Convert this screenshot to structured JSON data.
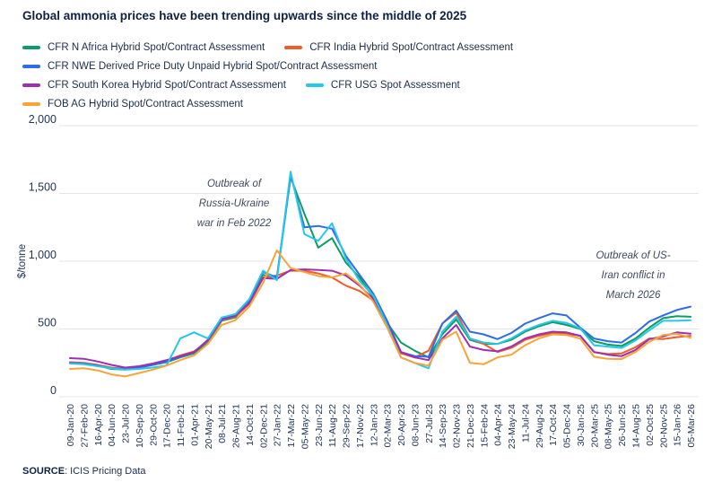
{
  "title": "Global ammonia prices have been trending upwards since the middle of 2025",
  "source": {
    "label": "SOURCE",
    "text": ": ICIS Pricing Data"
  },
  "annotations": [
    {
      "lines": [
        "Outbreak of",
        "Russia-Ukraine",
        "war in Feb 2022"
      ]
    },
    {
      "lines": [
        "Outbreak of US-",
        "Iran conflict in",
        "March 2026"
      ]
    }
  ],
  "chart_data": {
    "type": "line",
    "title": "Global ammonia prices have been trending upwards since the middle of 2025",
    "xlabel": "",
    "ylabel": "$/tonne",
    "ylim": [
      0,
      2000
    ],
    "yticks": [
      0,
      500,
      1000,
      1500,
      2000
    ],
    "ytick_labels": [
      "0",
      "500",
      "1,000",
      "1,500",
      "2,000"
    ],
    "grid": true,
    "legend_position": "top",
    "legend_rows": [
      [
        0,
        1
      ],
      [
        2
      ],
      [
        3,
        4
      ],
      [
        5
      ]
    ],
    "categories": [
      "09-Jan-20",
      "27-Feb-20",
      "16-Apr-20",
      "04-Jun-20",
      "23-Jul-20",
      "10-Sep-20",
      "29-Oct-20",
      "17-Dec-20",
      "11-Feb-21",
      "01-Apr-21",
      "20-May-21",
      "08-Jul-21",
      "26-Aug-21",
      "14-Oct-21",
      "02-Dec-21",
      "27-Jan-22",
      "17-Mar-22",
      "05-May-22",
      "23-Jun-22",
      "11-Aug-22",
      "29-Sep-22",
      "17-Nov-22",
      "12-Jan-23",
      "02-Mar-23",
      "20-Apr-23",
      "08-Jun-23",
      "27-Jul-23",
      "14-Sep-23",
      "02-Nov-23",
      "21-Dec-23",
      "15-Feb-24",
      "04-Apr-24",
      "23-May-24",
      "11-Jul-24",
      "29-Aug-24",
      "17-Oct-24",
      "05-Dec-24",
      "30-Jan-25",
      "20-Mar-25",
      "08-May-25",
      "26-Jun-25",
      "14-Aug-25",
      "02-Oct-25",
      "20-Nov-25",
      "15-Jan-26",
      "05-Mar-26"
    ],
    "series": [
      {
        "name": "CFR N Africa Hybrid Spot/Contract Assessment",
        "color": "#0b9d63",
        "values": [
          250,
          245,
          230,
          205,
          200,
          215,
          235,
          255,
          290,
          320,
          405,
          560,
          585,
          700,
          900,
          870,
          1620,
          1350,
          1100,
          1170,
          990,
          880,
          730,
          545,
          400,
          340,
          290,
          460,
          570,
          420,
          390,
          390,
          420,
          480,
          520,
          550,
          530,
          500,
          410,
          385,
          375,
          430,
          510,
          580,
          595,
          590
        ]
      },
      {
        "name": "CFR India Hybrid Spot/Contract Assessment",
        "color": "#f25c2a",
        "values": [
          255,
          250,
          235,
          215,
          205,
          220,
          240,
          265,
          305,
          335,
          410,
          565,
          590,
          685,
          880,
          895,
          930,
          930,
          910,
          880,
          820,
          780,
          710,
          530,
          320,
          290,
          340,
          540,
          620,
          430,
          390,
          330,
          360,
          420,
          450,
          470,
          465,
          450,
          330,
          315,
          320,
          365,
          430,
          425,
          440,
          450
        ]
      },
      {
        "name": "CFR NWE Derived Price Duty Unpaid Hybrid Spot/Contract Assessment",
        "color": "#2f6ce5",
        "values": [
          250,
          245,
          230,
          210,
          205,
          215,
          235,
          260,
          295,
          330,
          415,
          570,
          595,
          715,
          920,
          880,
          1640,
          1250,
          1260,
          1240,
          1040,
          900,
          760,
          560,
          330,
          300,
          295,
          540,
          635,
          480,
          460,
          425,
          470,
          540,
          580,
          615,
          600,
          510,
          430,
          410,
          400,
          470,
          555,
          600,
          640,
          665
        ]
      },
      {
        "name": "CFR South Korea Hybrid Spot/Contract Assessment",
        "color": "#9e2fb0",
        "values": [
          285,
          280,
          260,
          235,
          215,
          225,
          245,
          270,
          300,
          330,
          420,
          575,
          600,
          690,
          875,
          870,
          935,
          940,
          935,
          930,
          895,
          820,
          720,
          540,
          330,
          290,
          270,
          430,
          530,
          370,
          345,
          335,
          370,
          430,
          460,
          480,
          475,
          450,
          330,
          310,
          300,
          345,
          425,
          445,
          475,
          465
        ]
      },
      {
        "name": "CFR USG Spot Assessment",
        "color": "#27c7ea",
        "values": [
          245,
          240,
          225,
          210,
          200,
          205,
          215,
          230,
          430,
          475,
          430,
          585,
          610,
          720,
          930,
          860,
          1660,
          1200,
          1150,
          1280,
          1020,
          855,
          745,
          530,
          290,
          250,
          210,
          480,
          590,
          430,
          400,
          390,
          430,
          490,
          530,
          560,
          545,
          505,
          380,
          370,
          360,
          415,
          490,
          560,
          560,
          565
        ]
      },
      {
        "name": "FOB AG Hybrid Spot/Contract Assessment",
        "color": "#f7a439",
        "values": [
          205,
          210,
          195,
          165,
          150,
          175,
          200,
          230,
          270,
          305,
          390,
          530,
          565,
          665,
          840,
          1080,
          950,
          920,
          890,
          880,
          910,
          830,
          700,
          510,
          290,
          250,
          230,
          420,
          480,
          250,
          240,
          290,
          310,
          380,
          430,
          460,
          455,
          430,
          295,
          280,
          278,
          330,
          405,
          455,
          465,
          435
        ]
      }
    ]
  }
}
